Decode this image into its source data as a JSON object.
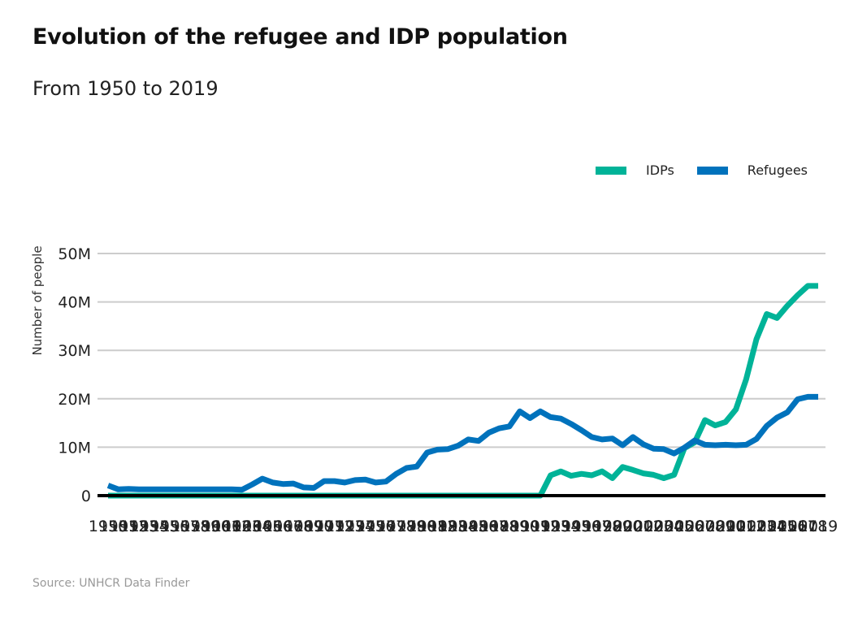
{
  "title": "Evolution of the refugee and IDP population",
  "subtitle": "From 1950 to 2019",
  "source": "Source: UNHCR Data Finder",
  "colors": {
    "idps": "#00B398",
    "refugees": "#0072BC",
    "grid": "#cccccc",
    "baseline": "#000000"
  },
  "chart_data": {
    "type": "line",
    "ylabel": "Number of people",
    "ylim": [
      0,
      50000000
    ],
    "yticks": [
      {
        "value": 0,
        "label": "0"
      },
      {
        "value": 10000000,
        "label": "10M"
      },
      {
        "value": 20000000,
        "label": "20M"
      },
      {
        "value": 30000000,
        "label": "30M"
      },
      {
        "value": 40000000,
        "label": "40M"
      },
      {
        "value": 50000000,
        "label": "50M"
      }
    ],
    "x": [
      1950,
      1951,
      1952,
      1953,
      1954,
      1955,
      1956,
      1957,
      1958,
      1959,
      1960,
      1961,
      1962,
      1963,
      1964,
      1965,
      1966,
      1967,
      1968,
      1969,
      1970,
      1971,
      1972,
      1973,
      1974,
      1975,
      1976,
      1977,
      1978,
      1979,
      1980,
      1981,
      1982,
      1983,
      1984,
      1985,
      1986,
      1987,
      1988,
      1989,
      1990,
      1991,
      1992,
      1993,
      1994,
      1995,
      1996,
      1997,
      1998,
      1999,
      2000,
      2001,
      2002,
      2003,
      2004,
      2005,
      2006,
      2007,
      2008,
      2009,
      2010,
      2011,
      2012,
      2013,
      2014,
      2015,
      2016,
      2017,
      2018,
      2019
    ],
    "legend": "top-right",
    "grid": true,
    "series": [
      {
        "name": "IDPs",
        "color": "#00B398",
        "values": [
          0,
          0,
          0,
          0,
          0,
          0,
          0,
          0,
          0,
          0,
          0,
          0,
          0,
          0,
          0,
          0,
          0,
          0,
          0,
          0,
          0,
          0,
          0,
          0,
          0,
          0,
          0,
          0,
          0,
          0,
          0,
          0,
          0,
          0,
          0,
          0,
          0,
          0,
          0,
          0,
          0,
          0,
          0,
          4200000,
          5000000,
          4100000,
          4500000,
          4200000,
          5000000,
          3600000,
          5900000,
          5300000,
          4600000,
          4300000,
          3600000,
          4300000,
          9800000,
          11000000,
          15600000,
          14500000,
          15200000,
          17800000,
          24000000,
          32300000,
          37500000,
          36700000,
          39200000,
          41400000,
          43300000,
          43300000
        ]
      },
      {
        "name": "Refugees",
        "color": "#0072BC",
        "values": [
          2100000,
          1300000,
          1400000,
          1300000,
          1300000,
          1300000,
          1300000,
          1300000,
          1300000,
          1300000,
          1300000,
          1300000,
          1300000,
          1200000,
          2300000,
          3500000,
          2700000,
          2400000,
          2500000,
          1700000,
          1600000,
          3000000,
          3000000,
          2700000,
          3200000,
          3300000,
          2700000,
          2900000,
          4500000,
          5700000,
          6000000,
          8900000,
          9500000,
          9600000,
          10300000,
          11600000,
          11300000,
          13000000,
          13900000,
          14300000,
          17400000,
          16000000,
          17400000,
          16200000,
          15900000,
          14800000,
          13500000,
          12100000,
          11600000,
          11800000,
          10400000,
          12100000,
          10600000,
          9700000,
          9600000,
          8700000,
          9900000,
          11400000,
          10500000,
          10400000,
          10500000,
          10400000,
          10500000,
          11700000,
          14400000,
          16100000,
          17200000,
          19900000,
          20400000,
          20400000
        ]
      }
    ]
  }
}
